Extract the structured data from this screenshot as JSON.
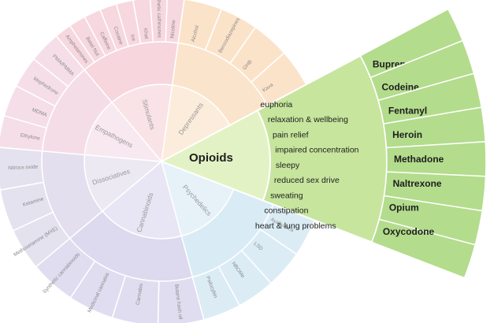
{
  "wheel": {
    "highlighted": {
      "name": "Opioids",
      "effects": [
        "euphoria",
        "relaxation & wellbeing",
        "pain relief",
        "impaired concentration",
        "sleepy",
        "reduced sex drive",
        "sweating",
        "constipation",
        "heart & lung problems"
      ],
      "drugs": [
        "Buprenorphine",
        "Codeine",
        "Fentanyl",
        "Heroin",
        "Methadone",
        "Naltrexone",
        "Opium",
        "Oxycodone"
      ]
    },
    "others": [
      {
        "name": "Psychedelics",
        "drugs": [
          "Ayahuasca",
          "LSD",
          "NBOMe",
          "Psilocybin"
        ]
      },
      {
        "name": "Cannabinoids",
        "drugs": [
          "Butane hash oil",
          "Cannabis",
          "Medicinal cannabis",
          "Synthetic cannabinoids"
        ]
      },
      {
        "name": "Dissociatives",
        "drugs": [
          "Methoxetamine (MXE)",
          "Ketamine",
          "Nitrous oxide"
        ]
      },
      {
        "name": "Empathogens",
        "drugs": [
          "Ethylone",
          "MDMA",
          "Mephedrone",
          "PMA/PMMA"
        ]
      },
      {
        "name": "Stimulants",
        "drugs": [
          "Amphetamines",
          "Betel Nut",
          "Caffeine",
          "Cocaine",
          "Ice",
          "Khat",
          "Synthetic cathinones",
          "Nicotine"
        ]
      },
      {
        "name": "Depressants",
        "drugs": [
          "Alcohol",
          "Benzodiazepines",
          "GHB",
          "Kava"
        ]
      }
    ]
  }
}
